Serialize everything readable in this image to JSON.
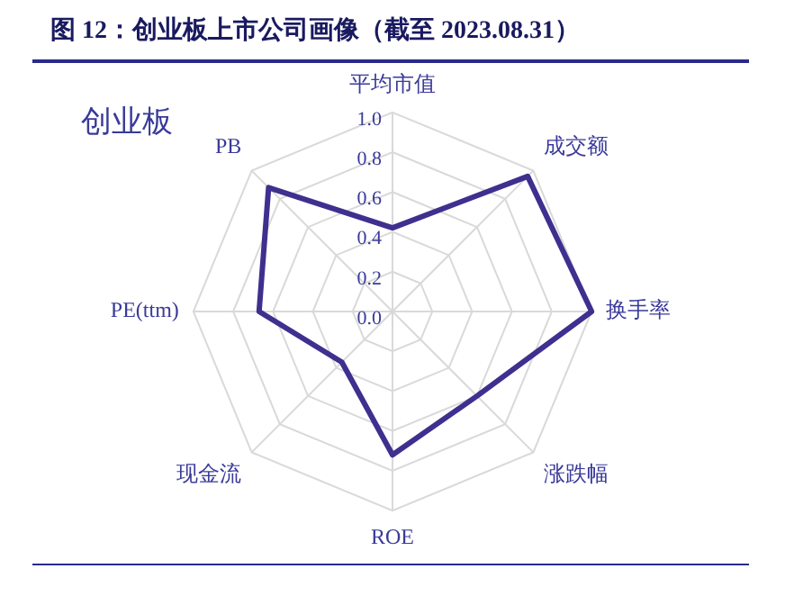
{
  "chart_data": {
    "type": "radar",
    "title": "图 12：创业板上市公司画像（截至 2023.08.31）",
    "subtitle": "创业板",
    "categories": [
      "平均市值",
      "成交额",
      "换手率",
      "涨跌幅",
      "ROE",
      "现金流",
      "PE(ttm)",
      "PB"
    ],
    "series": [
      {
        "color": "#3f2f8f",
        "values": [
          0.42,
          0.96,
          1.0,
          0.6,
          0.72,
          0.36,
          0.67,
          0.88
        ]
      }
    ],
    "ylim": [
      0,
      1
    ],
    "yticks": [
      {
        "value": 0,
        "label": "0.0"
      },
      {
        "value": 0.2,
        "label": "0.2"
      },
      {
        "value": 0.4,
        "label": "0.4"
      },
      {
        "value": 0.6,
        "label": "0.6"
      },
      {
        "value": 0.8,
        "label": "0.8"
      },
      {
        "value": 1,
        "label": "1.0"
      }
    ],
    "grid": true,
    "legend": false,
    "marker": "none",
    "line_style": "solid"
  }
}
